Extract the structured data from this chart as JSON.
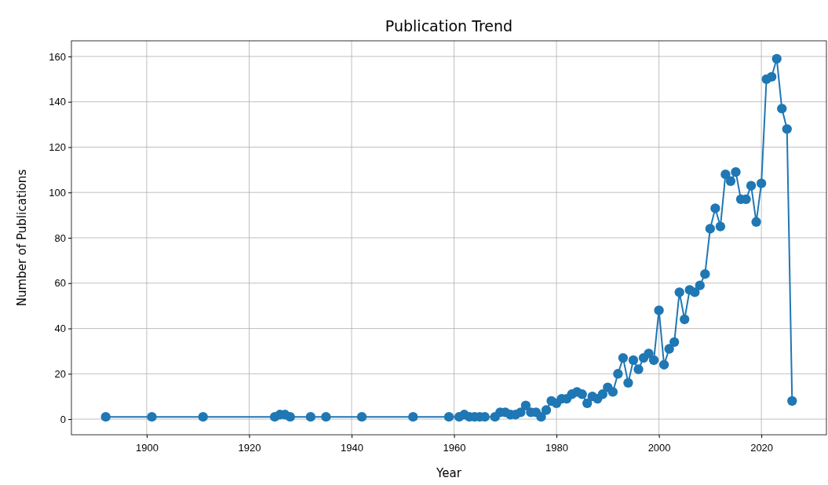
{
  "chart_data": {
    "type": "line",
    "title": "Publication Trend",
    "xlabel": "Year",
    "ylabel": "Number of Publications",
    "x": [
      1892,
      1901,
      1911,
      1925,
      1926,
      1927,
      1928,
      1932,
      1935,
      1942,
      1952,
      1959,
      1961,
      1962,
      1963,
      1964,
      1965,
      1966,
      1968,
      1969,
      1970,
      1971,
      1972,
      1973,
      1974,
      1975,
      1976,
      1977,
      1978,
      1979,
      1980,
      1981,
      1982,
      1983,
      1984,
      1985,
      1986,
      1987,
      1988,
      1989,
      1990,
      1991,
      1992,
      1993,
      1994,
      1995,
      1996,
      1997,
      1998,
      1999,
      2000,
      2001,
      2002,
      2003,
      2004,
      2005,
      2006,
      2007,
      2008,
      2009,
      2010,
      2011,
      2012,
      2013,
      2014,
      2015,
      2016,
      2017,
      2018,
      2019,
      2020,
      2021,
      2022,
      2023,
      2024,
      2025,
      2026
    ],
    "series": [
      {
        "color": "#1f77b4",
        "values": [
          1,
          1,
          1,
          1,
          2,
          2,
          1,
          1,
          1,
          1,
          1,
          1,
          1,
          2,
          1,
          1,
          1,
          1,
          1,
          3,
          3,
          2,
          2,
          3,
          6,
          3,
          3,
          1,
          4,
          8,
          7,
          9,
          9,
          11,
          12,
          11,
          7,
          10,
          9,
          11,
          14,
          12,
          20,
          27,
          16,
          26,
          22,
          27,
          29,
          26,
          48,
          24,
          31,
          34,
          56,
          44,
          57,
          56,
          59,
          64,
          84,
          93,
          85,
          108,
          105,
          109,
          97,
          97,
          103,
          87,
          104,
          150,
          151,
          159,
          137,
          128,
          8
        ]
      }
    ],
    "xlim": [
      1885.3,
      2032.7
    ],
    "xticks": [
      1900,
      1920,
      1940,
      1960,
      1980,
      2000,
      2020
    ],
    "ylim": [
      -6.9,
      166.9
    ],
    "yticks": [
      0,
      20,
      40,
      60,
      80,
      100,
      120,
      140,
      160
    ],
    "grid": true,
    "marker": "circle",
    "line_style": "solid"
  }
}
